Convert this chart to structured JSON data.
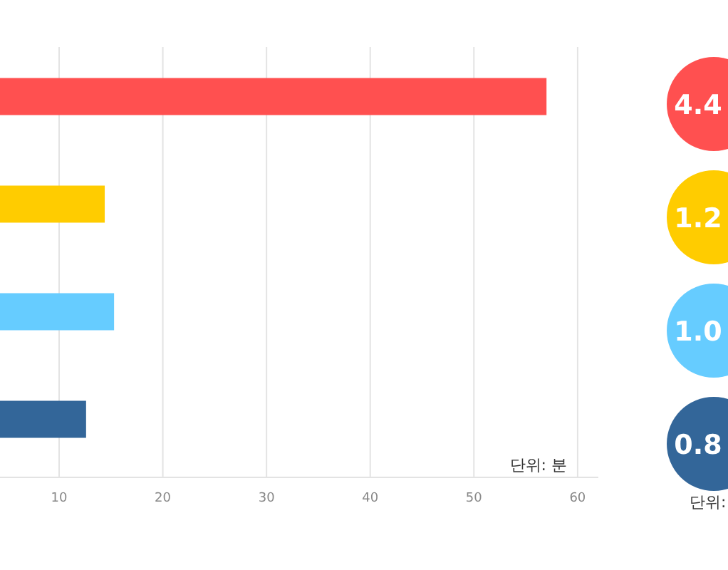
{
  "chart_data": [
    {
      "type": "bar",
      "orientation": "horizontal",
      "categories": [
        null,
        null,
        null,
        null
      ],
      "values": [
        57,
        14.4,
        15.3,
        12.6
      ],
      "colors": [
        "#ff5050",
        "#ffcc00",
        "#66ccff",
        "#336699"
      ],
      "xlim": [
        4.3,
        62
      ],
      "xticks": [
        10,
        20,
        30,
        40,
        50,
        60
      ],
      "grid": "x",
      "annotations": [
        "단위: 분"
      ]
    },
    {
      "type": "other",
      "categories": [
        null,
        null,
        null,
        null
      ],
      "values": [
        4.4,
        1.2,
        1.0,
        0.8
      ],
      "value_labels": [
        "4.4",
        "1.2",
        "1.0",
        "0.8"
      ],
      "colors": [
        "#ff5050",
        "#ffcc00",
        "#66ccff",
        "#336699"
      ],
      "annotations": [
        "단위:"
      ]
    }
  ]
}
